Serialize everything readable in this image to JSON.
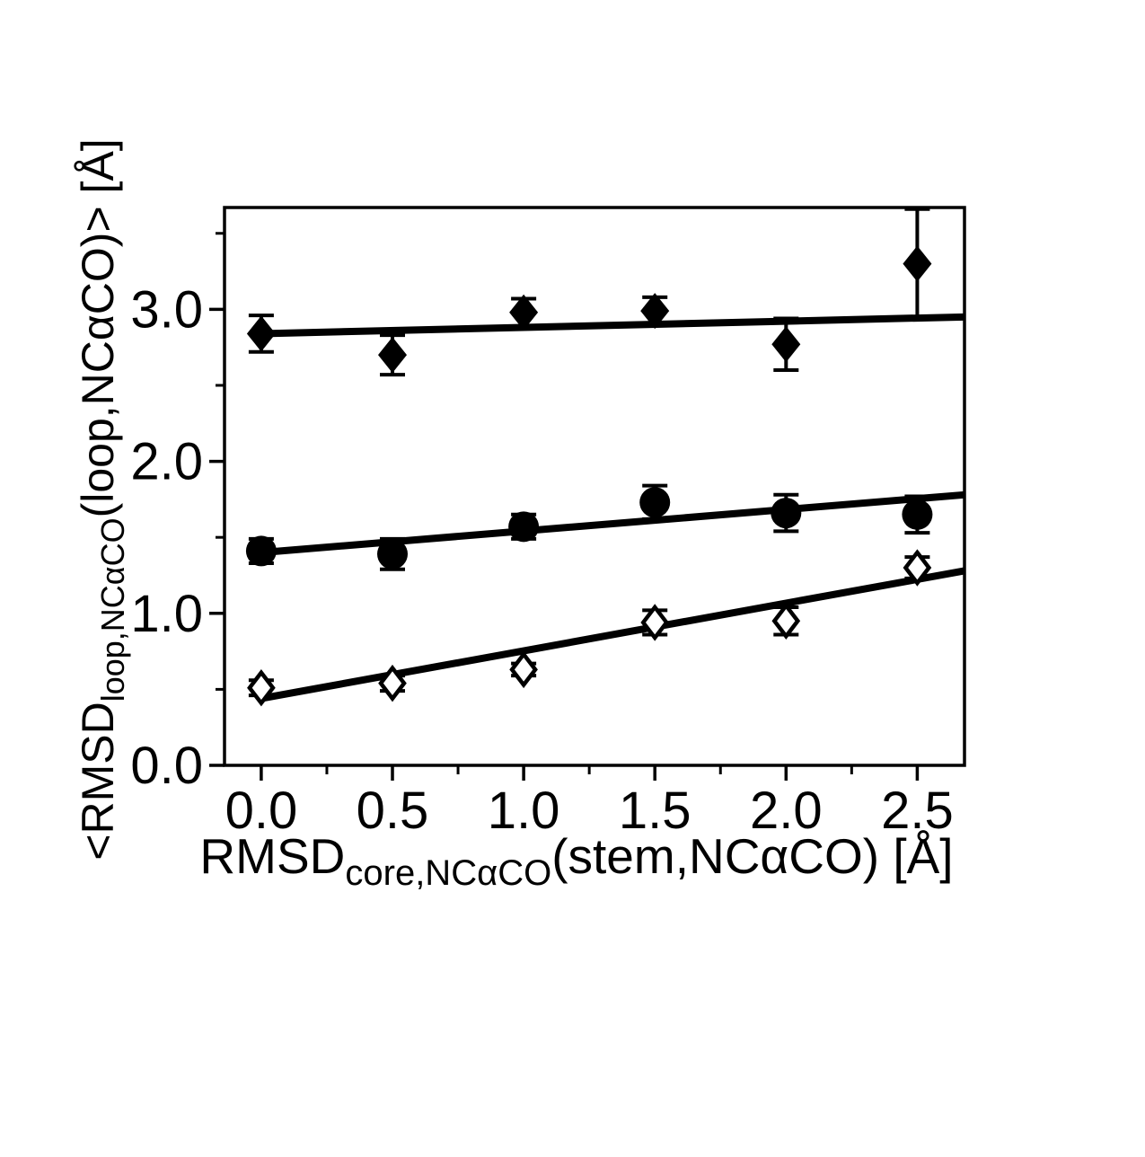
{
  "figure": {
    "background": "#ffffff",
    "ink": "#000000",
    "title": ""
  },
  "axes": {
    "x": {
      "label": {
        "main": "RMSD",
        "sub": "core,NCαCO",
        "rest": "(stem,NCαCO) [Å]"
      },
      "ticks": [
        "0.0",
        "0.5",
        "1.0",
        "1.5",
        "2.0",
        "2.5"
      ],
      "tick_values": [
        0.0,
        0.5,
        1.0,
        1.5,
        2.0,
        2.5
      ],
      "minor_tick_values": [
        0.25,
        0.75,
        1.25,
        1.75,
        2.25
      ],
      "range": [
        -0.14,
        2.68
      ]
    },
    "y": {
      "label": {
        "main": "<RMSD",
        "sub": "loop,NCαCO",
        "rest": "(loop,NCαCO)>  [Å]"
      },
      "ticks": [
        "0.0",
        "1.0",
        "2.0",
        "3.0"
      ],
      "tick_values": [
        0.0,
        1.0,
        2.0,
        3.0
      ],
      "minor_tick_values": [
        0.5,
        1.5,
        2.5,
        3.5
      ],
      "range": [
        0,
        3.67
      ]
    }
  },
  "chart_data": {
    "type": "scatter",
    "title": "",
    "xlabel": "RMSD_core,NCαCO(stem,NCαCO) [Å]",
    "ylabel": "<RMSD_loop,NCαCO(loop,NCαCO)> [Å]",
    "xlim": [
      -0.14,
      2.68
    ],
    "ylim": [
      0,
      3.67
    ],
    "grid": false,
    "legend": false,
    "x": [
      0.0,
      0.5,
      1.0,
      1.5,
      2.0,
      2.5
    ],
    "series": [
      {
        "name": "filled-diamond-series",
        "marker": "diamond-filled",
        "values": [
          2.84,
          2.7,
          2.98,
          2.99,
          2.77,
          3.3
        ],
        "errors": [
          0.12,
          0.13,
          0.09,
          0.09,
          0.17,
          0.36
        ],
        "fit_line": {
          "x_start": 0.0,
          "x_end": 2.68,
          "y_start": 2.84,
          "y_end": 2.95
        }
      },
      {
        "name": "filled-circle-series",
        "marker": "circle-filled",
        "values": [
          1.41,
          1.39,
          1.57,
          1.73,
          1.66,
          1.65
        ],
        "errors": [
          0.08,
          0.1,
          0.08,
          0.11,
          0.12,
          0.12
        ],
        "fit_line": {
          "x_start": 0.0,
          "x_end": 2.68,
          "y_start": 1.4,
          "y_end": 1.78
        }
      },
      {
        "name": "open-diamond-series",
        "marker": "diamond-open",
        "values": [
          0.51,
          0.54,
          0.63,
          0.94,
          0.95,
          1.3
        ],
        "errors": [
          0.05,
          0.05,
          0.04,
          0.08,
          0.09,
          0.07
        ],
        "fit_line": {
          "x_start": 0.0,
          "x_end": 2.68,
          "y_start": 0.44,
          "y_end": 1.28
        }
      }
    ]
  }
}
